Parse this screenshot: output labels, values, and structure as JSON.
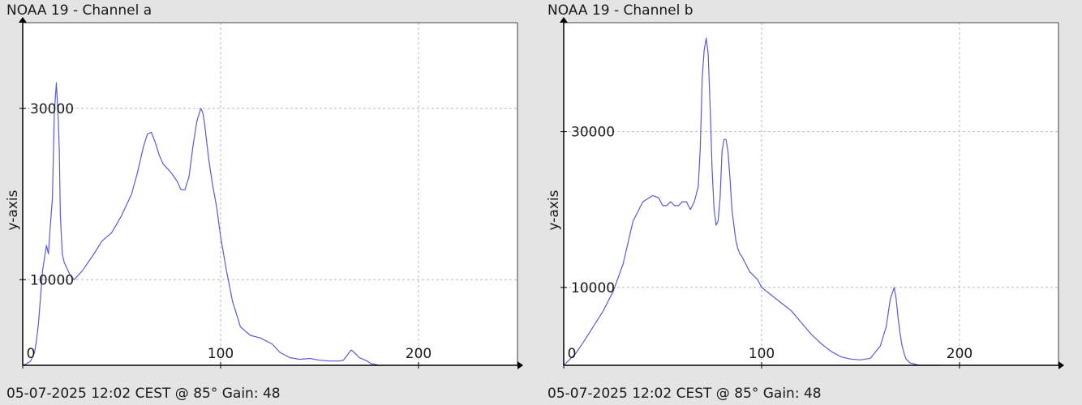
{
  "chart_data": [
    {
      "type": "line",
      "title": "NOAA 19 - Channel a",
      "footer": "05-07-2025 12:02 CEST @ 85° Gain: 48",
      "ylabel": "y-axis",
      "xlabel": "",
      "xlim": [
        0,
        250
      ],
      "ylim": [
        0,
        40000
      ],
      "xticks": [
        0,
        100,
        200
      ],
      "yticks": [
        10000,
        30000
      ],
      "grid": true,
      "line_color": "#5a5ad6",
      "series": [
        {
          "x": [
            0,
            2,
            4,
            6,
            7,
            8,
            9,
            10,
            11,
            12,
            13,
            14,
            15,
            16,
            17,
            18,
            18.5,
            19,
            20,
            21,
            22,
            24,
            26,
            28,
            30,
            33,
            36,
            40,
            45,
            50,
            55,
            58,
            61,
            63,
            65,
            67,
            69,
            71,
            73,
            75,
            78,
            80,
            82,
            84,
            86,
            88,
            90,
            91,
            92,
            93,
            94,
            95,
            96,
            98,
            100,
            103,
            106,
            110,
            115,
            120,
            126,
            130,
            135,
            140,
            145,
            150,
            155,
            160,
            162,
            164,
            166,
            168,
            170,
            172,
            174,
            176,
            178,
            180
          ],
          "y": [
            0,
            200,
            500,
            1500,
            3000,
            5000,
            8000,
            11000,
            12500,
            14000,
            13000,
            16500,
            19500,
            29500,
            33000,
            28500,
            25000,
            17500,
            13000,
            12000,
            11500,
            10500,
            10000,
            10500,
            11000,
            12000,
            13000,
            14500,
            15500,
            17500,
            20000,
            22500,
            25500,
            27000,
            27200,
            26000,
            24500,
            23500,
            23000,
            22500,
            21500,
            20500,
            20500,
            22000,
            25500,
            28500,
            30000,
            29500,
            28000,
            26000,
            24000,
            22500,
            21000,
            18500,
            15000,
            11000,
            7500,
            4500,
            3500,
            3200,
            2500,
            1500,
            900,
            700,
            800,
            600,
            500,
            500,
            600,
            1200,
            1800,
            1400,
            900,
            700,
            500,
            200,
            100,
            0
          ]
        }
      ]
    },
    {
      "type": "line",
      "title": "NOAA 19 - Channel b",
      "footer": "05-07-2025 12:02 CEST @ 85° Gain: 48",
      "ylabel": "y-axis",
      "xlabel": "",
      "xlim": [
        0,
        250
      ],
      "ylim": [
        0,
        44000
      ],
      "xticks": [
        0,
        100,
        200
      ],
      "yticks": [
        10000,
        30000
      ],
      "grid": true,
      "line_color": "#5a5ad6",
      "series": [
        {
          "x": [
            0,
            2,
            4,
            6,
            10,
            15,
            20,
            25,
            30,
            35,
            40,
            45,
            48,
            50,
            52,
            54,
            56,
            58,
            60,
            62,
            64,
            66,
            68,
            69,
            70,
            71,
            72,
            73,
            74,
            75,
            76,
            77,
            78,
            79,
            80,
            81,
            82,
            83,
            84,
            85,
            86,
            87,
            88,
            89,
            90,
            91,
            92,
            93,
            94,
            96,
            98,
            100,
            105,
            110,
            115,
            120,
            125,
            130,
            135,
            140,
            145,
            150,
            155,
            160,
            163,
            165,
            167,
            168,
            169,
            170,
            171,
            172,
            173,
            175,
            178,
            180,
            185,
            190
          ],
          "y": [
            0,
            500,
            1000,
            1500,
            3000,
            5000,
            7000,
            9500,
            13000,
            18500,
            21000,
            21800,
            21500,
            20500,
            20500,
            21000,
            20500,
            20500,
            21000,
            21000,
            20000,
            21000,
            23000,
            28000,
            37000,
            40500,
            42000,
            40000,
            33000,
            25000,
            20000,
            18000,
            18500,
            21500,
            27500,
            29000,
            29000,
            27500,
            24000,
            20000,
            18000,
            16000,
            15000,
            14300,
            14000,
            13500,
            13000,
            12500,
            12000,
            11500,
            11000,
            10000,
            9000,
            8000,
            7000,
            5500,
            4000,
            2800,
            1800,
            1100,
            800,
            700,
            900,
            2500,
            5000,
            8500,
            10000,
            8500,
            6000,
            4000,
            2500,
            1500,
            800,
            300,
            100,
            0,
            0,
            0
          ]
        }
      ]
    }
  ]
}
